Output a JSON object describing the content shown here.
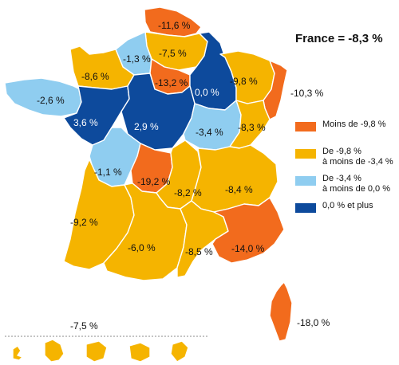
{
  "title": "France = -8,3 %",
  "colors": {
    "orange": "#f26b1d",
    "yellow": "#f5b400",
    "lightblue": "#8fcdf0",
    "darkblue": "#0d4a9c"
  },
  "legend": [
    {
      "line1": "Moins de -9,8 %",
      "line2": "",
      "color": "#f26b1d"
    },
    {
      "line1": "De -9,8 %",
      "line2": "à moins de -3,4 %",
      "color": "#f5b400"
    },
    {
      "line1": "De -3,4 %",
      "line2": "à moins de 0,0 %",
      "color": "#8fcdf0"
    },
    {
      "line1": "0,0 % et plus",
      "line2": "",
      "color": "#0d4a9c"
    }
  ],
  "regions": {
    "nord": "-11,6 %",
    "picardie": "-7,5 %",
    "haute_normandie": "-1,3 %",
    "basse_normandie": "-8,6 %",
    "ile_de_france": "-13,2 %",
    "champagne": "0,0 %",
    "lorraine": "-9,8 %",
    "alsace": "-10,3 %",
    "bretagne": "-2,6 %",
    "pays_de_la_loire": "3,6 %",
    "centre": "2,9 %",
    "bourgogne": "-3,4 %",
    "franche_comte": "-8,3 %",
    "poitou": "-1,1 %",
    "limousin": "-19,2 %",
    "auvergne": "-8,2 %",
    "rhone_alpes": "-8,4 %",
    "aquitaine": "-9,2 %",
    "midi_pyrenees": "-6,0 %",
    "languedoc": "-8,5 %",
    "paca": "-14,0 %",
    "corse": "-18,0 %",
    "dom": "-7,5 %"
  }
}
